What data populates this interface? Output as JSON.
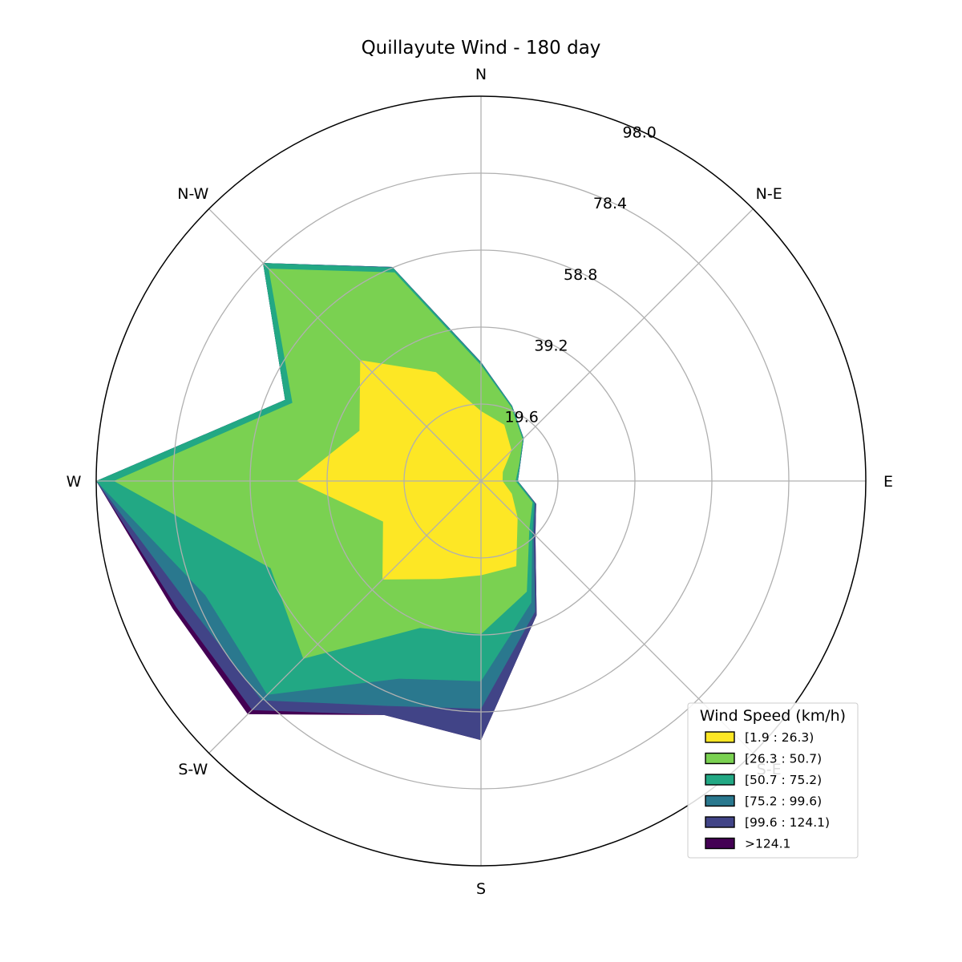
{
  "chart_data": {
    "type": "windrose",
    "title": "Quillayute Wind - 180 day",
    "directions": [
      "N",
      "N-E",
      "E",
      "S-E",
      "S",
      "S-W",
      "W",
      "N-W"
    ],
    "direction_angles_deg": [
      0,
      22.5,
      45,
      67.5,
      90,
      112.5,
      135,
      157.5,
      180,
      202.5,
      225,
      247.5,
      270,
      292.5,
      315,
      337.5
    ],
    "rmax": 98.0,
    "rings": [
      19.6,
      39.2,
      58.8,
      78.4,
      98.0
    ],
    "ring_labels": [
      "19.6",
      "39.2",
      "58.8",
      "78.4",
      "98.0"
    ],
    "grid": true,
    "legend": {
      "title": "Wind Speed (km/h)",
      "placement": "lower-right"
    },
    "series": [
      {
        "name": "[1.9 : 26.3)",
        "color": "#fde725",
        "cumulative": [
          17.8,
          15.5,
          11.0,
          6.0,
          5.5,
          8.5,
          13.2,
          23.5,
          24.0,
          27.0,
          35.5,
          27.0,
          47.0,
          33.5,
          43.5,
          30.0
        ]
      },
      {
        "name": "[26.3 : 50.7)",
        "color": "#7ad151",
        "cumulative": [
          29.5,
          20.3,
          15.0,
          10.5,
          8.8,
          14.2,
          17.4,
          30.5,
          39.0,
          40.5,
          64.0,
          58.0,
          93.5,
          52.0,
          76.5,
          57.5
        ]
      },
      {
        "name": "[50.7 : 75.2)",
        "color": "#22a884",
        "cumulative": [
          30.0,
          20.6,
          15.3,
          10.7,
          9.3,
          14.7,
          18.5,
          33.5,
          51.0,
          54.5,
          77.0,
          76.0,
          98.0,
          54.0,
          78.5,
          58.8
        ]
      },
      {
        "name": "[75.2 : 99.6)",
        "color": "#2a788e",
        "cumulative": [
          30.3,
          20.7,
          15.4,
          10.8,
          9.4,
          15.0,
          19.0,
          36.0,
          58.0,
          62.0,
          79.0,
          81.0,
          98.0,
          54.0,
          78.5,
          59.0
        ]
      },
      {
        "name": "[99.6 : 124.1)",
        "color": "#414487",
        "cumulative": [
          30.3,
          20.7,
          15.4,
          10.8,
          9.4,
          15.2,
          19.6,
          37.0,
          66.0,
          64.5,
          82.5,
          84.0,
          98.0,
          54.0,
          78.5,
          59.0
        ]
      },
      {
        "name": ">124.1",
        "color": "#440154",
        "cumulative": [
          30.3,
          20.7,
          15.4,
          10.8,
          9.4,
          15.2,
          19.6,
          37.0,
          66.0,
          64.5,
          84.0,
          85.0,
          98.0,
          54.0,
          78.5,
          59.0
        ]
      }
    ]
  }
}
